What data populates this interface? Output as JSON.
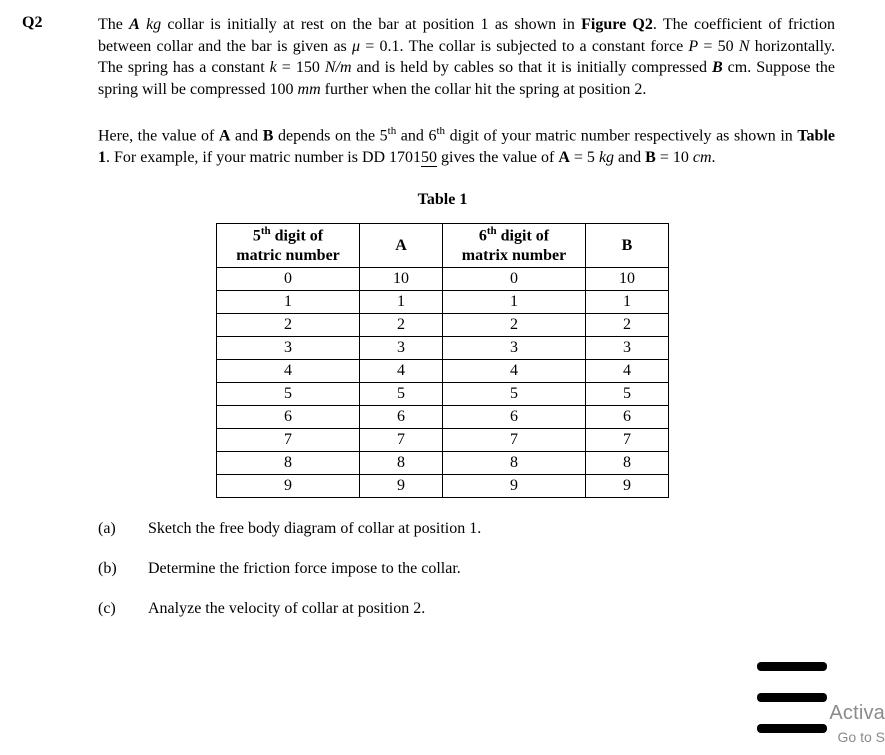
{
  "question_label": "Q2",
  "paragraph1_html": "The <i><b>A</b> kg</i> collar is initially at rest on the bar at position 1 as shown in <b>Figure Q2</b>. The coefficient of friction between collar and the bar is given as <i>μ</i> = 0.1. The collar is subjected to a constant force <i>P</i> = 50 <i>N</i> horizontally. The spring has a constant <i>k</i> = 150 <i>N/m</i> and is held by cables so that it is initially compressed <i><b>B</b></i> cm. Suppose the spring will be compressed 100 <i>mm</i> further when the collar hit the spring at position 2.",
  "paragraph2_html": "Here, the value of <b>A</b> and <b>B</b> depends on the 5<sup>th</sup> and 6<sup>th</sup> digit of your matric number respectively as shown in <b>Table 1</b>. For example, if your matric number is DD 1701<span class=\"hl\">50</span> gives the value of <b>A</b> = 5 <i>kg</i> and <b>B</b> = 10 <i>cm</i>.",
  "table_caption": "Table 1",
  "table": {
    "headers": {
      "c1_html": "5<sup>th</sup> digit of<br>matric number",
      "c2": "A",
      "c3_html": "6<sup>th</sup> digit of<br>matrix number",
      "c4": "B"
    },
    "rows": [
      [
        "0",
        "10",
        "0",
        "10"
      ],
      [
        "1",
        "1",
        "1",
        "1"
      ],
      [
        "2",
        "2",
        "2",
        "2"
      ],
      [
        "3",
        "3",
        "3",
        "3"
      ],
      [
        "4",
        "4",
        "4",
        "4"
      ],
      [
        "5",
        "5",
        "5",
        "5"
      ],
      [
        "6",
        "6",
        "6",
        "6"
      ],
      [
        "7",
        "7",
        "7",
        "7"
      ],
      [
        "8",
        "8",
        "8",
        "8"
      ],
      [
        "9",
        "9",
        "9",
        "9"
      ]
    ]
  },
  "subq": [
    {
      "label": "(a)",
      "text": "Sketch the free body diagram of collar at position 1."
    },
    {
      "label": "(b)",
      "text": "Determine the friction force impose to the collar."
    },
    {
      "label": "(c)",
      "text": "Analyze the velocity of collar at position 2."
    }
  ],
  "watermark": {
    "line1": "Activa",
    "line2": "Go to S"
  }
}
